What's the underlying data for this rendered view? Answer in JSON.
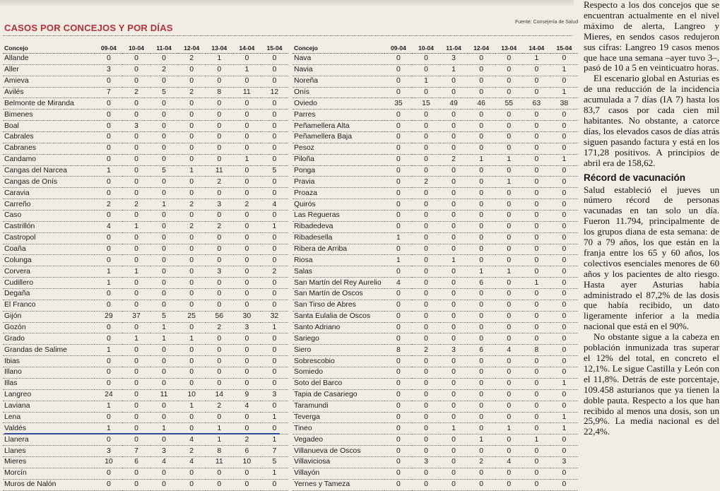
{
  "section_title": "CASOS POR CONCEJOS Y POR DÍAS",
  "source": "Fuente: Consejería de Salud",
  "header": {
    "concejo": "Concejo",
    "days": [
      "09-04",
      "10-04",
      "11-04",
      "12-04",
      "13-04",
      "14-04",
      "15-04"
    ]
  },
  "left_rows": [
    {
      "name": "Allande",
      "v": [
        "0",
        "0",
        "0",
        "2",
        "1",
        "0",
        "0"
      ]
    },
    {
      "name": "Aller",
      "v": [
        "3",
        "0",
        "2",
        "0",
        "0",
        "1",
        "0"
      ]
    },
    {
      "name": "Amieva",
      "v": [
        "0",
        "0",
        "0",
        "0",
        "0",
        "0",
        "0"
      ]
    },
    {
      "name": "Avilés",
      "v": [
        "7",
        "2",
        "5",
        "2",
        "8",
        "11",
        "12"
      ]
    },
    {
      "name": "Belmonte de Miranda",
      "v": [
        "0",
        "0",
        "0",
        "0",
        "0",
        "0",
        "0"
      ]
    },
    {
      "name": "Bimenes",
      "v": [
        "0",
        "0",
        "0",
        "0",
        "0",
        "0",
        "0"
      ]
    },
    {
      "name": "Boal",
      "v": [
        "0",
        "3",
        "0",
        "0",
        "0",
        "0",
        "0"
      ]
    },
    {
      "name": "Cabrales",
      "v": [
        "0",
        "0",
        "0",
        "0",
        "0",
        "0",
        "0"
      ]
    },
    {
      "name": "Cabranes",
      "v": [
        "0",
        "0",
        "0",
        "0",
        "0",
        "0",
        "0"
      ]
    },
    {
      "name": "Candamo",
      "v": [
        "0",
        "0",
        "0",
        "0",
        "0",
        "1",
        "0"
      ]
    },
    {
      "name": "Cangas del Narcea",
      "v": [
        "1",
        "0",
        "5",
        "1",
        "11",
        "0",
        "5"
      ]
    },
    {
      "name": "Cangas de Onís",
      "v": [
        "0",
        "0",
        "0",
        "0",
        "2",
        "0",
        "0"
      ]
    },
    {
      "name": "Caravia",
      "v": [
        "0",
        "0",
        "0",
        "0",
        "0",
        "0",
        "0"
      ]
    },
    {
      "name": "Carreño",
      "v": [
        "2",
        "2",
        "1",
        "2",
        "3",
        "2",
        "4"
      ]
    },
    {
      "name": "Caso",
      "v": [
        "0",
        "0",
        "0",
        "0",
        "0",
        "0",
        "0"
      ]
    },
    {
      "name": "Castrillón",
      "v": [
        "4",
        "1",
        "0",
        "2",
        "2",
        "0",
        "1"
      ]
    },
    {
      "name": "Castropol",
      "v": [
        "0",
        "0",
        "0",
        "0",
        "0",
        "0",
        "0"
      ]
    },
    {
      "name": "Coaña",
      "v": [
        "0",
        "0",
        "0",
        "0",
        "0",
        "0",
        "0"
      ]
    },
    {
      "name": "Colunga",
      "v": [
        "0",
        "0",
        "0",
        "0",
        "0",
        "0",
        "0"
      ]
    },
    {
      "name": "Corvera",
      "v": [
        "1",
        "1",
        "0",
        "0",
        "3",
        "0",
        "2"
      ]
    },
    {
      "name": "Cudillero",
      "v": [
        "1",
        "0",
        "0",
        "0",
        "0",
        "0",
        "0"
      ]
    },
    {
      "name": "Degaña",
      "v": [
        "0",
        "0",
        "0",
        "0",
        "0",
        "0",
        "0"
      ]
    },
    {
      "name": "El Franco",
      "v": [
        "0",
        "0",
        "0",
        "0",
        "0",
        "0",
        "0"
      ]
    },
    {
      "name": "Gijón",
      "v": [
        "29",
        "37",
        "5",
        "25",
        "56",
        "30",
        "32"
      ]
    },
    {
      "name": "Gozón",
      "v": [
        "0",
        "0",
        "1",
        "0",
        "2",
        "3",
        "1"
      ]
    },
    {
      "name": "Grado",
      "v": [
        "0",
        "1",
        "1",
        "1",
        "0",
        "0",
        "0"
      ]
    },
    {
      "name": "Grandas de Salime",
      "v": [
        "1",
        "0",
        "0",
        "0",
        "0",
        "0",
        "0"
      ]
    },
    {
      "name": "Ibias",
      "v": [
        "0",
        "0",
        "0",
        "0",
        "0",
        "0",
        "0"
      ]
    },
    {
      "name": "Illano",
      "v": [
        "0",
        "0",
        "0",
        "0",
        "0",
        "0",
        "0"
      ]
    },
    {
      "name": "Illas",
      "v": [
        "0",
        "0",
        "0",
        "0",
        "0",
        "0",
        "0"
      ]
    },
    {
      "name": "Langreo",
      "v": [
        "24",
        "0",
        "11",
        "10",
        "14",
        "9",
        "3"
      ]
    },
    {
      "name": "Laviana",
      "v": [
        "1",
        "0",
        "0",
        "1",
        "2",
        "4",
        "0"
      ]
    },
    {
      "name": "Lena",
      "v": [
        "0",
        "0",
        "0",
        "0",
        "0",
        "0",
        "1"
      ]
    },
    {
      "name": "Valdés",
      "v": [
        "1",
        "0",
        "1",
        "0",
        "1",
        "0",
        "0"
      ]
    },
    {
      "name": "Llanera",
      "v": [
        "0",
        "0",
        "0",
        "4",
        "1",
        "2",
        "1"
      ]
    },
    {
      "name": "Llanes",
      "v": [
        "3",
        "7",
        "3",
        "2",
        "8",
        "6",
        "7"
      ]
    },
    {
      "name": "Mieres",
      "v": [
        "10",
        "6",
        "4",
        "4",
        "11",
        "10",
        "5"
      ]
    },
    {
      "name": "Morcín",
      "v": [
        "0",
        "0",
        "0",
        "0",
        "0",
        "0",
        "1"
      ]
    },
    {
      "name": "Muros de Nalón",
      "v": [
        "0",
        "0",
        "0",
        "0",
        "0",
        "0",
        "0"
      ]
    }
  ],
  "right_rows": [
    {
      "name": "Nava",
      "v": [
        "0",
        "0",
        "3",
        "0",
        "0",
        "1",
        "0"
      ]
    },
    {
      "name": "Navia",
      "v": [
        "0",
        "0",
        "1",
        "0",
        "0",
        "0",
        "1"
      ]
    },
    {
      "name": "Noreña",
      "v": [
        "0",
        "1",
        "0",
        "0",
        "0",
        "0",
        "0"
      ]
    },
    {
      "name": "Onís",
      "v": [
        "0",
        "0",
        "0",
        "0",
        "0",
        "0",
        "1"
      ]
    },
    {
      "name": "Oviedo",
      "v": [
        "35",
        "15",
        "49",
        "46",
        "55",
        "63",
        "38"
      ]
    },
    {
      "name": "Parres",
      "v": [
        "0",
        "0",
        "0",
        "0",
        "0",
        "0",
        "0"
      ]
    },
    {
      "name": "Peñamellera Alta",
      "v": [
        "0",
        "0",
        "0",
        "0",
        "0",
        "0",
        "0"
      ]
    },
    {
      "name": "Peñamellera Baja",
      "v": [
        "0",
        "0",
        "0",
        "0",
        "0",
        "0",
        "0"
      ]
    },
    {
      "name": "Pesoz",
      "v": [
        "0",
        "0",
        "0",
        "0",
        "0",
        "0",
        "0"
      ]
    },
    {
      "name": "Piloña",
      "v": [
        "0",
        "0",
        "2",
        "1",
        "1",
        "0",
        "1"
      ]
    },
    {
      "name": "Ponga",
      "v": [
        "0",
        "0",
        "0",
        "0",
        "0",
        "0",
        "0"
      ]
    },
    {
      "name": "Pravia",
      "v": [
        "0",
        "2",
        "0",
        "0",
        "1",
        "0",
        "0"
      ]
    },
    {
      "name": "Proaza",
      "v": [
        "0",
        "0",
        "0",
        "0",
        "0",
        "0",
        "0"
      ]
    },
    {
      "name": "Quirós",
      "v": [
        "0",
        "0",
        "0",
        "0",
        "0",
        "0",
        "0"
      ]
    },
    {
      "name": "Las Regueras",
      "v": [
        "0",
        "0",
        "0",
        "0",
        "0",
        "0",
        "0"
      ]
    },
    {
      "name": "Ribadedeva",
      "v": [
        "0",
        "0",
        "0",
        "0",
        "0",
        "0",
        "0"
      ]
    },
    {
      "name": "Ribadesella",
      "v": [
        "1",
        "0",
        "0",
        "0",
        "0",
        "0",
        "0"
      ]
    },
    {
      "name": "Ribera de Arriba",
      "v": [
        "0",
        "0",
        "0",
        "0",
        "0",
        "0",
        "0"
      ]
    },
    {
      "name": "Riosa",
      "v": [
        "1",
        "0",
        "1",
        "0",
        "0",
        "0",
        "0"
      ]
    },
    {
      "name": "Salas",
      "v": [
        "0",
        "0",
        "0",
        "1",
        "1",
        "0",
        "0"
      ]
    },
    {
      "name": "San Martín del Rey Aurelio",
      "v": [
        "4",
        "0",
        "0",
        "6",
        "0",
        "1",
        "0"
      ]
    },
    {
      "name": "San Martín de Oscos",
      "v": [
        "0",
        "0",
        "0",
        "0",
        "0",
        "0",
        "0"
      ]
    },
    {
      "name": "San Tirso de Abres",
      "v": [
        "0",
        "0",
        "0",
        "0",
        "0",
        "0",
        "0"
      ]
    },
    {
      "name": "Santa Eulalia de Oscos",
      "v": [
        "0",
        "0",
        "0",
        "0",
        "0",
        "0",
        "0"
      ]
    },
    {
      "name": "Santo Adriano",
      "v": [
        "0",
        "0",
        "0",
        "0",
        "0",
        "0",
        "0"
      ]
    },
    {
      "name": "Sariego",
      "v": [
        "0",
        "0",
        "0",
        "0",
        "0",
        "0",
        "0"
      ]
    },
    {
      "name": "Siero",
      "v": [
        "8",
        "2",
        "3",
        "6",
        "4",
        "8",
        "0"
      ]
    },
    {
      "name": "Sobrescobio",
      "v": [
        "0",
        "0",
        "0",
        "0",
        "0",
        "0",
        "0"
      ]
    },
    {
      "name": "Somiedo",
      "v": [
        "0",
        "0",
        "0",
        "0",
        "0",
        "0",
        "0"
      ]
    },
    {
      "name": "Soto del Barco",
      "v": [
        "0",
        "0",
        "0",
        "0",
        "0",
        "0",
        "1"
      ]
    },
    {
      "name": "Tapia de Casariego",
      "v": [
        "0",
        "0",
        "0",
        "0",
        "0",
        "0",
        "0"
      ]
    },
    {
      "name": "Taramundi",
      "v": [
        "0",
        "0",
        "0",
        "0",
        "0",
        "0",
        "0"
      ]
    },
    {
      "name": "Teverga",
      "v": [
        "0",
        "0",
        "0",
        "0",
        "0",
        "0",
        "1"
      ]
    },
    {
      "name": "Tineo",
      "v": [
        "0",
        "0",
        "1",
        "0",
        "1",
        "0",
        "1"
      ]
    },
    {
      "name": "Vegadeo",
      "v": [
        "0",
        "0",
        "0",
        "1",
        "0",
        "1",
        "0"
      ]
    },
    {
      "name": "Villanueva de Oscos",
      "v": [
        "0",
        "0",
        "0",
        "0",
        "0",
        "0",
        "0"
      ]
    },
    {
      "name": "Villaviciosa",
      "v": [
        "0",
        "3",
        "0",
        "2",
        "4",
        "0",
        "3"
      ]
    },
    {
      "name": "Villayón",
      "v": [
        "0",
        "0",
        "0",
        "0",
        "0",
        "0",
        "0"
      ]
    },
    {
      "name": "Yernes y Tameza",
      "v": [
        "0",
        "0",
        "0",
        "0",
        "0",
        "0",
        "0"
      ]
    }
  ],
  "article": {
    "p1": "Respecto a los dos concejos que se encuentran actualmente en el nivel máximo de alerta, Langreo y Mieres, en sendos casos redujeron sus cifras: Langreo 19 casos menos que hace una semana –ayer tuvo 3–, pasó de 10 a 5 en veinticuatro horas.",
    "p2": "El escenario global en Asturias es de una reducción de la incidencia acumulada a 7 días (IA 7) hasta los 83,7 casos por cada cien mil habitantes. No obstante, a catorce días, los elevados casos de días atrás siguen pasando factura y está en los 171,28 positivos. A principios de abril era de 158,62.",
    "heading": "Récord de vacunación",
    "p3": "Salud estableció el jueves un número récord de personas vacunadas en tan solo un día. Fueron 11.794, principalmente de los grupos diana de esta semana: de 70 a 79 años, los que están en la franja entre los 65 y 60 años, los colectivos esenciales menores de 60 años y los pacientes de alto riesgo. Hasta ayer Asturias había administrado el 87,2% de las dosis que había recibido, un dato ligeramente inferior a la media nacional que está en el 90%.",
    "p4": "No obstante sigue a la cabeza en población inmunizada tras superar el 12% del total, en concreto el 12,1%. Le sigue Castilla y León con el 11,8%. Detrás de este porcentaje, 109.458 asturianos que ya tienen la doble pauta. Respecto a los que han recibido al menos una dosis, son un 25,9%. La media nacional es del 22,4%."
  }
}
